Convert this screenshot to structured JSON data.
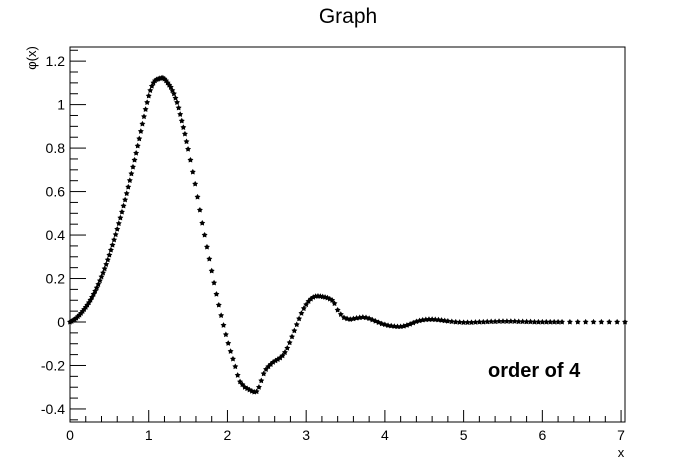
{
  "chart_data": {
    "type": "scatter",
    "title": "Graph",
    "xlabel": "x",
    "ylabel": "φ(x)",
    "xlim": [
      0,
      7.05
    ],
    "ylim": [
      -0.46,
      1.265
    ],
    "grid": false,
    "annotation": "order of 4",
    "x_ticks": [
      "0",
      "1",
      "2",
      "3",
      "4",
      "5",
      "6",
      "7"
    ],
    "y_ticks": [
      "-0.4",
      "-0.2",
      "0",
      "0.2",
      "0.4",
      "0.6",
      "0.8",
      "1",
      "1.2"
    ],
    "series": [
      {
        "values": [
          [
            0.0,
            0.0
          ],
          [
            0.02,
            0.003
          ],
          [
            0.04,
            0.008
          ],
          [
            0.06,
            0.012
          ],
          [
            0.08,
            0.018
          ],
          [
            0.1,
            0.025
          ],
          [
            0.12,
            0.032
          ],
          [
            0.14,
            0.04
          ],
          [
            0.16,
            0.049
          ],
          [
            0.18,
            0.058
          ],
          [
            0.2,
            0.068
          ],
          [
            0.22,
            0.078
          ],
          [
            0.24,
            0.089
          ],
          [
            0.26,
            0.101
          ],
          [
            0.28,
            0.114
          ],
          [
            0.3,
            0.128
          ],
          [
            0.32,
            0.142
          ],
          [
            0.34,
            0.157
          ],
          [
            0.36,
            0.173
          ],
          [
            0.38,
            0.19
          ],
          [
            0.4,
            0.208
          ],
          [
            0.42,
            0.226
          ],
          [
            0.44,
            0.245
          ],
          [
            0.46,
            0.265
          ],
          [
            0.48,
            0.286
          ],
          [
            0.5,
            0.308
          ],
          [
            0.52,
            0.331
          ],
          [
            0.54,
            0.354
          ],
          [
            0.56,
            0.378
          ],
          [
            0.58,
            0.402
          ],
          [
            0.6,
            0.427
          ],
          [
            0.62,
            0.453
          ],
          [
            0.64,
            0.479
          ],
          [
            0.66,
            0.506
          ],
          [
            0.68,
            0.534
          ],
          [
            0.7,
            0.562
          ],
          [
            0.72,
            0.591
          ],
          [
            0.74,
            0.621
          ],
          [
            0.76,
            0.651
          ],
          [
            0.78,
            0.682
          ],
          [
            0.8,
            0.713
          ],
          [
            0.82,
            0.745
          ],
          [
            0.84,
            0.777
          ],
          [
            0.86,
            0.81
          ],
          [
            0.88,
            0.843
          ],
          [
            0.9,
            0.877
          ],
          [
            0.92,
            0.911
          ],
          [
            0.94,
            0.945
          ],
          [
            0.96,
            0.978
          ],
          [
            0.98,
            1.01
          ],
          [
            1.0,
            1.04
          ],
          [
            1.02,
            1.065
          ],
          [
            1.04,
            1.085
          ],
          [
            1.06,
            1.1
          ],
          [
            1.08,
            1.11
          ],
          [
            1.1,
            1.115
          ],
          [
            1.12,
            1.118
          ],
          [
            1.14,
            1.12
          ],
          [
            1.16,
            1.122
          ],
          [
            1.18,
            1.123
          ],
          [
            1.2,
            1.118
          ],
          [
            1.22,
            1.11
          ],
          [
            1.24,
            1.1
          ],
          [
            1.26,
            1.09
          ],
          [
            1.28,
            1.08
          ],
          [
            1.3,
            1.065
          ],
          [
            1.32,
            1.05
          ],
          [
            1.34,
            1.03
          ],
          [
            1.36,
            1.01
          ],
          [
            1.38,
            0.985
          ],
          [
            1.4,
            0.955
          ],
          [
            1.42,
            0.925
          ],
          [
            1.44,
            0.895
          ],
          [
            1.46,
            0.865
          ],
          [
            1.48,
            0.83
          ],
          [
            1.5,
            0.795
          ],
          [
            1.53,
            0.745
          ],
          [
            1.56,
            0.69
          ],
          [
            1.59,
            0.635
          ],
          [
            1.62,
            0.575
          ],
          [
            1.65,
            0.515
          ],
          [
            1.68,
            0.455
          ],
          [
            1.71,
            0.4
          ],
          [
            1.74,
            0.345
          ],
          [
            1.77,
            0.29
          ],
          [
            1.8,
            0.235
          ],
          [
            1.83,
            0.18
          ],
          [
            1.86,
            0.128
          ],
          [
            1.89,
            0.078
          ],
          [
            1.92,
            0.03
          ],
          [
            1.95,
            -0.015
          ],
          [
            1.98,
            -0.058
          ],
          [
            2.01,
            -0.098
          ],
          [
            2.04,
            -0.135
          ],
          [
            2.07,
            -0.17
          ],
          [
            2.1,
            -0.205
          ],
          [
            2.13,
            -0.245
          ],
          [
            2.16,
            -0.275
          ],
          [
            2.19,
            -0.288
          ],
          [
            2.22,
            -0.3
          ],
          [
            2.25,
            -0.306
          ],
          [
            2.28,
            -0.312
          ],
          [
            2.31,
            -0.318
          ],
          [
            2.34,
            -0.322
          ],
          [
            2.37,
            -0.32
          ],
          [
            2.4,
            -0.3
          ],
          [
            2.43,
            -0.27
          ],
          [
            2.46,
            -0.238
          ],
          [
            2.49,
            -0.218
          ],
          [
            2.52,
            -0.205
          ],
          [
            2.55,
            -0.195
          ],
          [
            2.58,
            -0.185
          ],
          [
            2.61,
            -0.178
          ],
          [
            2.64,
            -0.172
          ],
          [
            2.67,
            -0.165
          ],
          [
            2.7,
            -0.155
          ],
          [
            2.73,
            -0.14
          ],
          [
            2.76,
            -0.12
          ],
          [
            2.79,
            -0.095
          ],
          [
            2.82,
            -0.068
          ],
          [
            2.85,
            -0.04
          ],
          [
            2.88,
            -0.012
          ],
          [
            2.91,
            0.015
          ],
          [
            2.94,
            0.04
          ],
          [
            2.97,
            0.062
          ],
          [
            3.0,
            0.08
          ],
          [
            3.03,
            0.095
          ],
          [
            3.06,
            0.106
          ],
          [
            3.09,
            0.114
          ],
          [
            3.12,
            0.118
          ],
          [
            3.15,
            0.119
          ],
          [
            3.18,
            0.118
          ],
          [
            3.21,
            0.116
          ],
          [
            3.24,
            0.114
          ],
          [
            3.27,
            0.111
          ],
          [
            3.3,
            0.106
          ],
          [
            3.33,
            0.1
          ],
          [
            3.36,
            0.085
          ],
          [
            3.4,
            0.055
          ],
          [
            3.44,
            0.035
          ],
          [
            3.48,
            0.02
          ],
          [
            3.52,
            0.015
          ],
          [
            3.56,
            0.012
          ],
          [
            3.6,
            0.015
          ],
          [
            3.64,
            0.018
          ],
          [
            3.68,
            0.02
          ],
          [
            3.72,
            0.022
          ],
          [
            3.76,
            0.02
          ],
          [
            3.8,
            0.016
          ],
          [
            3.84,
            0.01
          ],
          [
            3.88,
            0.004
          ],
          [
            3.92,
            -0.002
          ],
          [
            3.96,
            -0.008
          ],
          [
            4.0,
            -0.012
          ],
          [
            4.04,
            -0.016
          ],
          [
            4.08,
            -0.018
          ],
          [
            4.12,
            -0.02
          ],
          [
            4.16,
            -0.021
          ],
          [
            4.2,
            -0.021
          ],
          [
            4.24,
            -0.019
          ],
          [
            4.28,
            -0.015
          ],
          [
            4.32,
            -0.01
          ],
          [
            4.36,
            -0.004
          ],
          [
            4.4,
            0.002
          ],
          [
            4.44,
            0.006
          ],
          [
            4.48,
            0.009
          ],
          [
            4.52,
            0.011
          ],
          [
            4.56,
            0.012
          ],
          [
            4.6,
            0.012
          ],
          [
            4.64,
            0.011
          ],
          [
            4.68,
            0.01
          ],
          [
            4.72,
            0.008
          ],
          [
            4.76,
            0.006
          ],
          [
            4.8,
            0.004
          ],
          [
            4.85,
            0.002
          ],
          [
            4.9,
            0.0
          ],
          [
            4.95,
            -0.001
          ],
          [
            5.0,
            -0.002
          ],
          [
            5.05,
            -0.002
          ],
          [
            5.1,
            -0.002
          ],
          [
            5.15,
            -0.001
          ],
          [
            5.2,
            0.0
          ],
          [
            5.25,
            0.0
          ],
          [
            5.3,
            0.001
          ],
          [
            5.35,
            0.002
          ],
          [
            5.4,
            0.002
          ],
          [
            5.45,
            0.003
          ],
          [
            5.5,
            0.003
          ],
          [
            5.55,
            0.003
          ],
          [
            5.6,
            0.003
          ],
          [
            5.65,
            0.003
          ],
          [
            5.7,
            0.002
          ],
          [
            5.75,
            0.002
          ],
          [
            5.8,
            0.001
          ],
          [
            5.85,
            0.001
          ],
          [
            5.9,
            0.0
          ],
          [
            5.95,
            0.0
          ],
          [
            6.0,
            0.0
          ],
          [
            6.05,
            0.0
          ],
          [
            6.1,
            0.0
          ],
          [
            6.15,
            0.0
          ],
          [
            6.2,
            0.0
          ],
          [
            6.25,
            0.0
          ],
          [
            6.35,
            0.0
          ],
          [
            6.45,
            0.0
          ],
          [
            6.55,
            0.0
          ],
          [
            6.65,
            0.0
          ],
          [
            6.75,
            0.0
          ],
          [
            6.85,
            0.0
          ],
          [
            6.95,
            0.0
          ],
          [
            7.05,
            0.0
          ]
        ]
      }
    ]
  }
}
